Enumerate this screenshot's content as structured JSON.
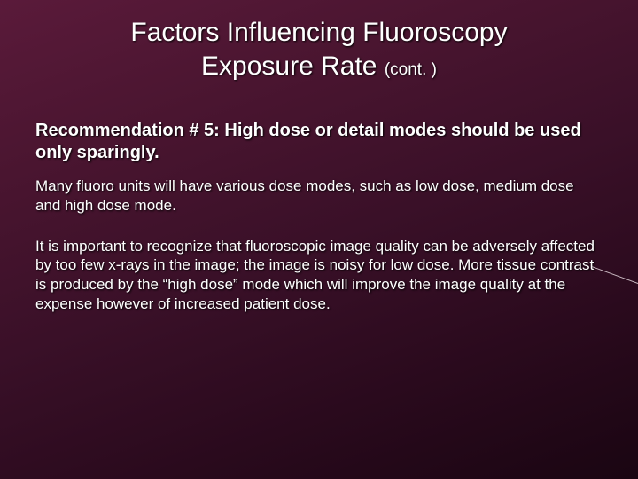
{
  "slide": {
    "background_gradient": [
      "#5a1a3a",
      "#4a1530",
      "#3a1028",
      "#2a0a1d",
      "#1a0512"
    ],
    "text_color": "#ffffff",
    "text_shadow": "1px 1px 2px #000",
    "title": {
      "line1": "Factors Influencing Fluoroscopy",
      "line2_a": "Exposure Rate ",
      "line2_b": "(cont. )",
      "fontsize_main": 30,
      "fontsize_cont": 19,
      "weight": 400
    },
    "subheading": {
      "text": "Recommendation # 5:  High dose or detail modes should be used only sparingly.",
      "fontsize": 20,
      "weight": 700
    },
    "paragraph1": {
      "text": "Many fluoro units will have various dose modes, such as low dose, medium dose and high dose mode.",
      "fontsize": 17
    },
    "paragraph2": {
      "text": "It is important to recognize that fluoroscopic image quality can be adversely affected by too few x-rays in the image; the image is noisy for low dose. More tissue contrast is produced by the “high dose” mode which will improve the image quality at the expense however of increased patient dose.",
      "fontsize": 17
    },
    "accent_line_color": "#c8b8c0"
  }
}
